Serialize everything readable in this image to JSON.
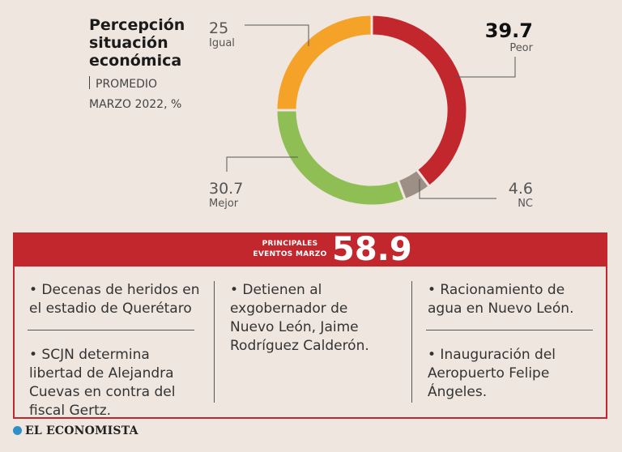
{
  "chart_data": {
    "type": "pie",
    "title": "Percepción situación económica",
    "subtitle_line1": "PROMEDIO",
    "subtitle_line2": "MARZO 2022, %",
    "slices": [
      {
        "label": "Peor",
        "value": 39.7,
        "color": "#c1272d"
      },
      {
        "label": "NC",
        "value": 4.6,
        "color": "#9d8f86"
      },
      {
        "label": "Mejor",
        "value": 30.7,
        "color": "#8fbf54"
      },
      {
        "label": "Igual",
        "value": 25,
        "color": "#f5a228"
      }
    ],
    "value_labels": {
      "peor": "39.7",
      "nc": "4.6",
      "mejor": "30.7",
      "igual": "25"
    }
  },
  "events": {
    "band_label_line1": "PRINCIPALES",
    "band_label_line2": "EVENTOS MARZO",
    "value": "58.9",
    "col1": {
      "item1": "• Decenas de heridos en el estadio de Querétaro",
      "item2": "• SCJN determina libertad de Alejandra Cuevas en contra del fiscal Gertz."
    },
    "col2": {
      "item1": "• Detienen al exgobernador de Nuevo León, Jaime Rodríguez Calderón."
    },
    "col3": {
      "item1": "• Racionamiento de agua en Nuevo León.",
      "item2": "• Inauguración del Aeropuerto Felipe Ángeles."
    }
  },
  "brand": {
    "name": "EL ECONOMISTA",
    "icon": "logo-icon"
  }
}
